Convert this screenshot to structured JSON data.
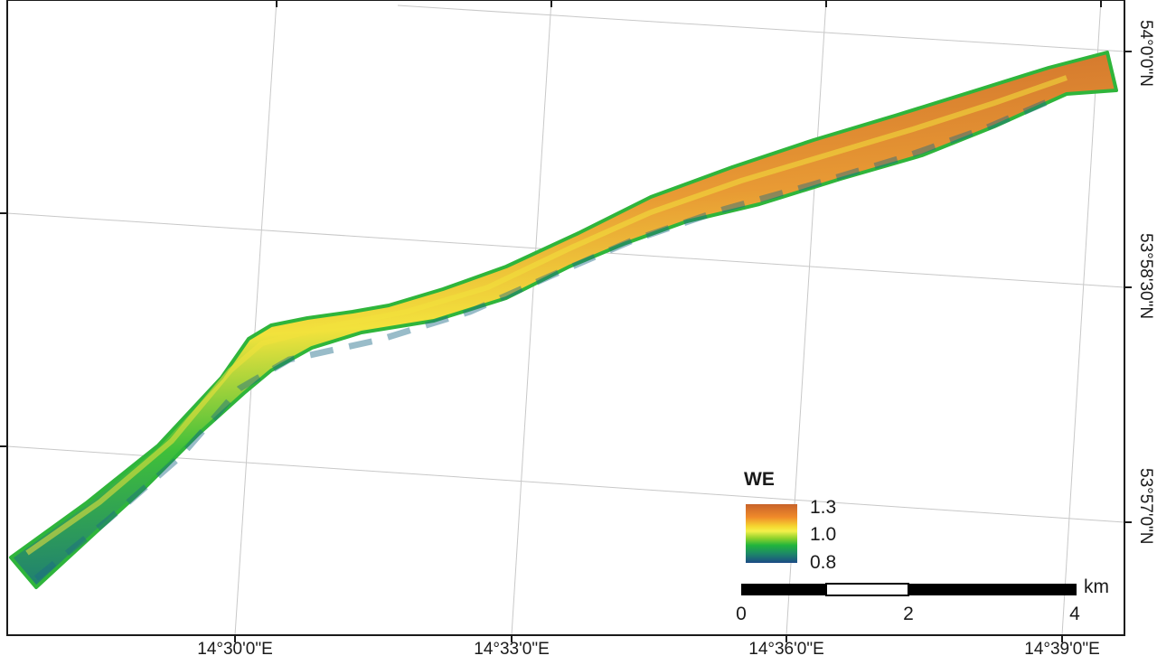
{
  "map": {
    "longitude_labels": [
      "14°30'0\"E",
      "14°33'0\"E",
      "14°36'0\"E",
      "14°39'0\"E"
    ],
    "latitude_labels": [
      "54°0'0\"N",
      "53°58'30\"N",
      "53°57'0\"N"
    ],
    "colors": {
      "frame": "#1a1a1a",
      "graticule": "#c8c8c8",
      "ramp_high": "#c8632a",
      "ramp_mid": "#f4f04a",
      "ramp_low": "#1c4a86"
    }
  },
  "legend": {
    "title": "WE",
    "max_label": "1.3",
    "mid_label": "1.0",
    "min_label": "0.8"
  },
  "scale_bar": {
    "unit": "km",
    "labels": [
      "0",
      "2",
      "4"
    ]
  }
}
